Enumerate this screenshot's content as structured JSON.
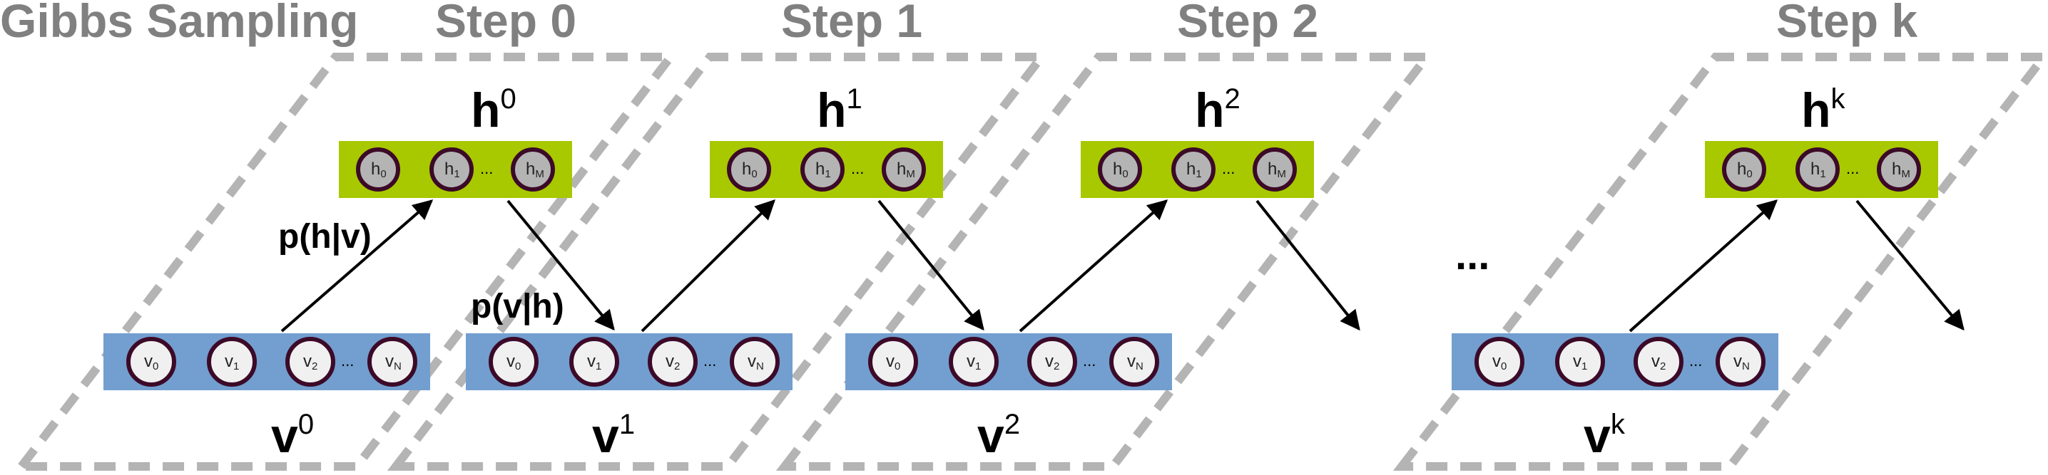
{
  "title": "Gibbs Sampling",
  "steps": [
    {
      "label": "Step 0",
      "h_base": "h",
      "h_sup": "0",
      "v_base": "v",
      "v_sup": "0",
      "h_arrow_label": "p(h|v)",
      "v_arrow_label": "p(v|h)"
    },
    {
      "label": "Step 1",
      "h_base": "h",
      "h_sup": "1",
      "v_base": "v",
      "v_sup": "1"
    },
    {
      "label": "Step 2",
      "h_base": "h",
      "h_sup": "2",
      "v_base": "v",
      "v_sup": "2"
    },
    {
      "label": "Step k",
      "h_base": "h",
      "h_sup": "k",
      "v_base": "v",
      "v_sup": "k"
    }
  ],
  "hidden_units": [
    {
      "base": "h",
      "sub": "0"
    },
    {
      "base": "h",
      "sub": "1"
    },
    {
      "base": "h",
      "sub": "M"
    }
  ],
  "visible_units": [
    {
      "base": "v",
      "sub": "0"
    },
    {
      "base": "v",
      "sub": "1"
    },
    {
      "base": "v",
      "sub": "2"
    },
    {
      "base": "v",
      "sub": "N"
    }
  ],
  "unit_ellipsis": "...",
  "gap_ellipsis": "...",
  "colors": {
    "hidden_layer": "#a8c800",
    "visible_layer": "#729fcf",
    "hidden_node_fill": "#b4b4b4",
    "visible_node_fill": "#f0f0f0",
    "node_stroke": "#3c0a28",
    "frame_dash": "#b4b4b4",
    "title": "#808080"
  }
}
